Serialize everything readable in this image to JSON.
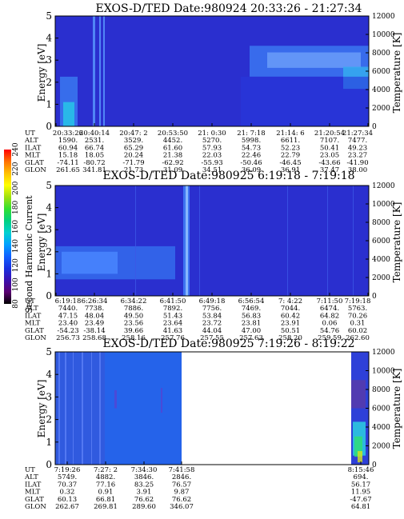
{
  "chart_data": {
    "colorbar": {
      "label": "Second Harmonic Current",
      "ticks": [
        "80",
        "100",
        "120",
        "140",
        "160",
        "180",
        "200",
        "220",
        "240"
      ],
      "colors": [
        "#000000",
        "#5a0070",
        "#3a10b0",
        "#1830e0",
        "#1060ff",
        "#00a0ff",
        "#00d0d0",
        "#00d080",
        "#30e030",
        "#a0e010",
        "#ffff00",
        "#ffc000",
        "#ff7000",
        "#ff0000"
      ]
    },
    "panels": [
      {
        "type": "heatmap",
        "title": "EXOS-D/TED   Date:980924  20:33:26 - 21:27:34",
        "ylabel": "Energy [eV]",
        "y2label": "Temperature [K]",
        "yticks": [
          "0",
          "1",
          "2",
          "3",
          "4",
          "5"
        ],
        "y2ticks": [
          "0",
          "2000",
          "4000",
          "6000",
          "8000",
          "10000",
          "12000"
        ],
        "ylim": [
          0,
          5
        ],
        "y2lim": [
          0,
          12000
        ],
        "rows": [
          {
            "label": "UT",
            "values": [
              "20:33:26",
              "20:40:14",
              "20:47: 2",
              "20:53:50",
              "21: 0:30",
              "21: 7:18",
              "21:14: 6",
              "21:20:54",
              "21:27:34"
            ]
          },
          {
            "label": "ALT",
            "values": [
              "1590.",
              "2531.",
              "3529.",
              "4452.",
              "5270.",
              "5998.",
              "6611.",
              "7107.",
              "7477."
            ]
          },
          {
            "label": "ILAT",
            "values": [
              "60.94",
              "66.74",
              "65.29",
              "61.60",
              "57.93",
              "54.73",
              "52.23",
              "50.41",
              "49.23"
            ]
          },
          {
            "label": "MLT",
            "values": [
              "15.18",
              "18.05",
              "20.24",
              "21.38",
              "22.03",
              "22.46",
              "22.79",
              "23.05",
              "23.27"
            ]
          },
          {
            "label": "GLAT",
            "values": [
              "-74.11",
              "-80.72",
              "-71.79",
              "-62.92",
              "-55.93",
              "-50.46",
              "-46.45",
              "-43.66",
              "-41.90"
            ]
          },
          {
            "label": "GLON",
            "values": [
              "261.65",
              "341.81",
              "21.73",
              "31.09",
              "34.51",
              "36.09",
              "36.91",
              "37.47",
              "38.00"
            ]
          }
        ]
      },
      {
        "type": "heatmap",
        "title": "EXOS-D/TED   Date:980925  6:19:18 - 7:19:18",
        "ylabel": "Energy [eV]",
        "y2label": "Temperature [K]",
        "yticks": [
          "0",
          "1",
          "2",
          "3",
          "4",
          "5"
        ],
        "y2ticks": [
          "0",
          "2000",
          "4000",
          "6000",
          "8000",
          "10000",
          "12000"
        ],
        "ylim": [
          0,
          5
        ],
        "y2lim": [
          0,
          12000
        ],
        "rows": [
          {
            "label": "UT",
            "values": [
              "6:19:18",
              "6:26:34",
              "6:34:22",
              "6:41:50",
              "6:49:18",
              "6:56:54",
              "7: 4:22",
              "7:11:50",
              "7:19:18"
            ]
          },
          {
            "label": "ALT",
            "values": [
              "7440.",
              "7738.",
              "7886.",
              "7892.",
              "7756.",
              "7469.",
              "7044.",
              "6474.",
              "5763."
            ]
          },
          {
            "label": "ILAT",
            "values": [
              "47.15",
              "48.04",
              "49.50",
              "51.43",
              "53.84",
              "56.83",
              "60.42",
              "64.82",
              "70.26"
            ]
          },
          {
            "label": "MLT",
            "values": [
              "23.40",
              "23.49",
              "23.56",
              "23.64",
              "23.72",
              "23.81",
              "23.91",
              "0.06",
              "0.31"
            ]
          },
          {
            "label": "GLAT",
            "values": [
              "-54.23",
              "-38.14",
              "39.66",
              "41.63",
              "44.04",
              "47.00",
              "50.51",
              "54.76",
              "60.02"
            ]
          },
          {
            "label": "GLON",
            "values": [
              "256.73",
              "258.68",
              "258.16",
              "257.76",
              "257.55",
              "257.63",
              "258.20",
              "259.59",
              "262.60"
            ]
          }
        ]
      },
      {
        "type": "heatmap",
        "title": "EXOS-D/TED   Date:980925  7:19:26 - 8:19:22",
        "ylabel": "Energy [eV]",
        "y2label": "Temperature [K]",
        "yticks": [
          "0",
          "1",
          "2",
          "3",
          "4",
          "5"
        ],
        "y2ticks": [
          "0",
          "2000",
          "4000",
          "6000",
          "8000",
          "10000",
          "12000"
        ],
        "ylim": [
          0,
          5
        ],
        "y2lim": [
          0,
          12000
        ],
        "rows": [
          {
            "label": "UT",
            "values": [
              "7:19:26",
              "7:27: 2",
              "7:34:30",
              "7:41:58",
              "8:15:46"
            ]
          },
          {
            "label": "ALT",
            "values": [
              "5749.",
              "4882.",
              "3846.",
              "2846.",
              "694."
            ]
          },
          {
            "label": "ILAT",
            "values": [
              "70.37",
              "77.16",
              "83.25",
              "76.57",
              "56.17"
            ]
          },
          {
            "label": "MLT",
            "values": [
              "0.32",
              "0.91",
              "3.91",
              "9.87",
              "11.95"
            ]
          },
          {
            "label": "GLAT",
            "values": [
              "60.13",
              "66.81",
              "76.62",
              "76.62",
              "-47.67"
            ]
          },
          {
            "label": "GLON",
            "values": [
              "262.67",
              "269.81",
              "289.60",
              "346.07",
              "64.81"
            ]
          }
        ]
      }
    ]
  }
}
